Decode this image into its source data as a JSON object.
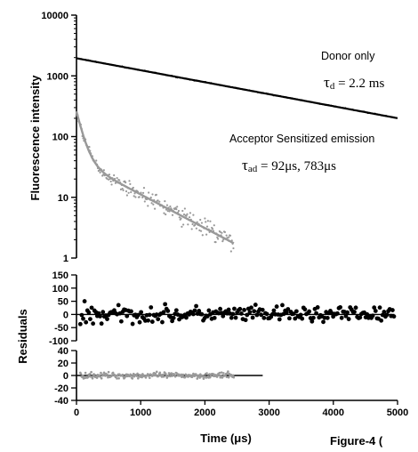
{
  "figure_label": "Figure-4 (",
  "chart_data": [
    {
      "panel": "decay",
      "type": "scatter",
      "ylabel": "Fluorescence intensity",
      "yscale": "log",
      "ylim": [
        1,
        10000
      ],
      "xlim": [
        0,
        5000
      ],
      "y_ticks": [
        "1",
        "10",
        "100",
        "1000",
        "10000"
      ],
      "annotations": {
        "donor_label": "Donor only",
        "donor_tau_symbol": "τ",
        "donor_tau_sub": "d",
        "donor_tau_value": " = 2.2 ms",
        "acceptor_label": "Acceptor Sensitized emission",
        "acceptor_tau_symbol": "τ",
        "acceptor_tau_sub": "ad",
        "acceptor_tau_value": " = 92μs, 783μs"
      },
      "series": [
        {
          "name": "Donor only",
          "color": "#000000",
          "fit": {
            "model": "single_exponential",
            "amplitude": 1950,
            "tau_us": 2200,
            "x_range": [
              0,
              5000
            ]
          }
        },
        {
          "name": "Acceptor Sensitized emission",
          "color": "#999999",
          "fit": {
            "model": "bi_exponential",
            "components": [
              {
                "amplitude": 220,
                "tau_us": 92
              },
              {
                "amplitude": 40,
                "tau_us": 783
              }
            ],
            "x_range": [
              0,
              2450
            ]
          }
        }
      ]
    },
    {
      "panel": "residuals-donor",
      "type": "scatter",
      "ylabel": "Residuals",
      "ylim": [
        -100,
        150
      ],
      "xlim": [
        0,
        5000
      ],
      "y_ticks": [
        "150",
        "100",
        "50",
        "0",
        "-50",
        "-100"
      ],
      "series": [
        {
          "name": "Donor only",
          "color": "#000000",
          "x_range": [
            60,
            4950
          ],
          "spread": 45
        }
      ]
    },
    {
      "panel": "residuals-acceptor",
      "type": "scatter",
      "ylim": [
        -40,
        40
      ],
      "xlim": [
        0,
        5000
      ],
      "x_ticks": [
        "0",
        "1000",
        "2000",
        "3000",
        "4000",
        "5000"
      ],
      "xlabel": "Time (μs)",
      "y_ticks": [
        "40",
        "20",
        "0",
        "-20",
        "-40"
      ],
      "series": [
        {
          "name": "Acceptor Sensitized emission",
          "color": "#999999",
          "x_range": [
            60,
            2450
          ],
          "spread": 7
        }
      ]
    }
  ]
}
